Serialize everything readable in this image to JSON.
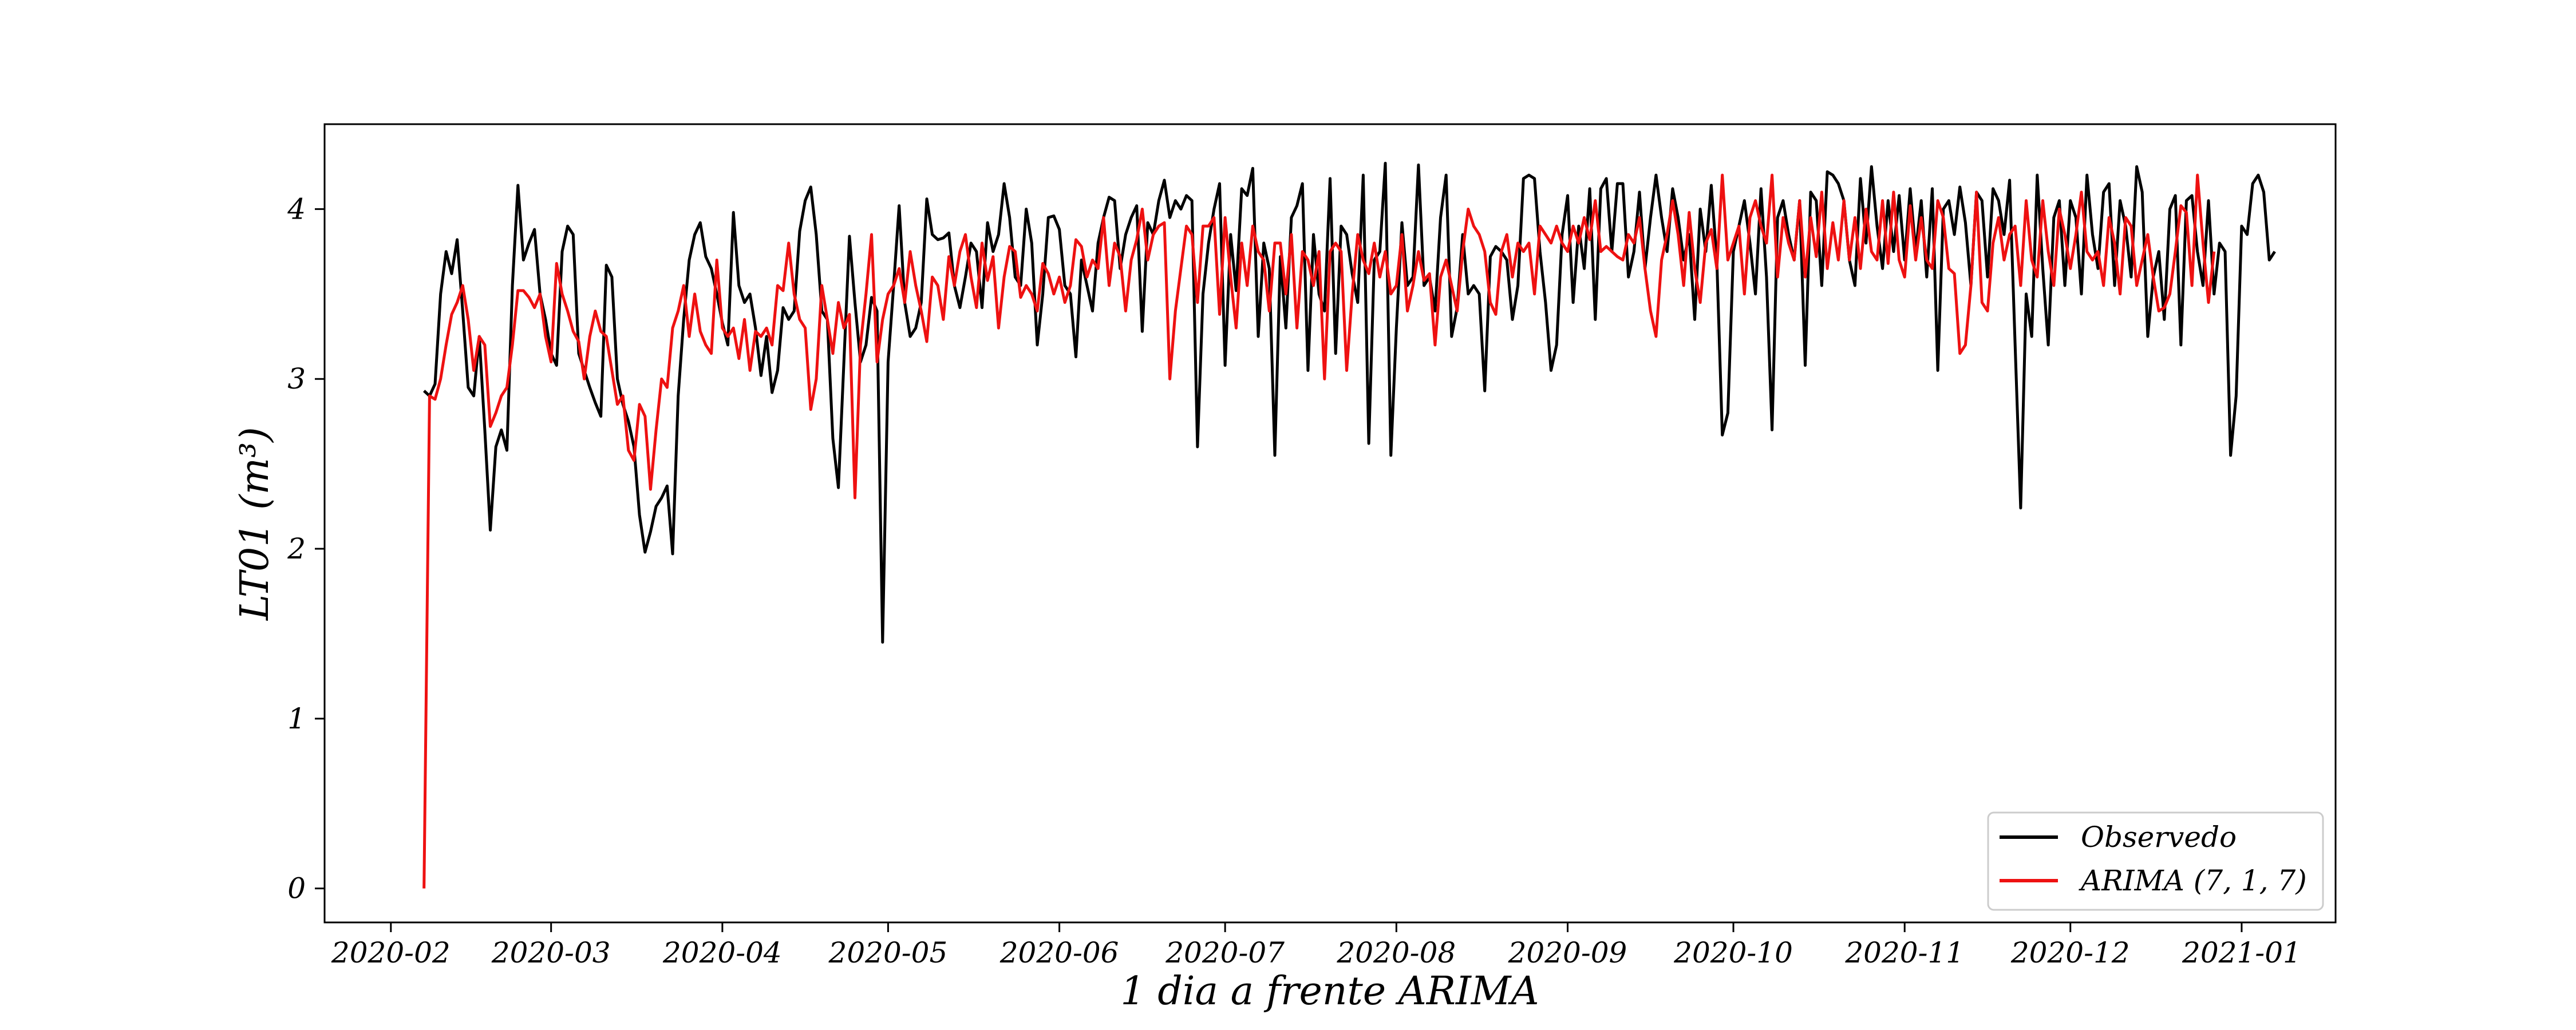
{
  "chart_data": {
    "type": "line",
    "xlabel": "1 dia a frente ARIMA",
    "ylabel": "LT01 (m³)",
    "xlim": [
      "2020-01-20",
      "2021-01-18"
    ],
    "ylim": [
      -0.2,
      4.5
    ],
    "x_ticks": [
      "2020-02",
      "2020-03",
      "2020-04",
      "2020-05",
      "2020-06",
      "2020-07",
      "2020-08",
      "2020-09",
      "2020-10",
      "2020-11",
      "2020-12",
      "2021-01"
    ],
    "y_ticks": [
      0,
      1,
      2,
      3,
      4
    ],
    "grid": false,
    "legend_position": "lower-right",
    "x_start": "2020-02-07",
    "x_step": "1 day",
    "series": [
      {
        "name": "Observedo",
        "color": "#000000",
        "values": [
          2.93,
          2.9,
          2.97,
          3.5,
          3.75,
          3.62,
          3.82,
          3.4,
          2.95,
          2.9,
          3.25,
          2.7,
          2.11,
          2.6,
          2.7,
          2.58,
          3.55,
          4.14,
          3.7,
          3.8,
          3.88,
          3.5,
          3.35,
          3.15,
          3.08,
          3.75,
          3.9,
          3.85,
          3.15,
          3.05,
          2.95,
          2.86,
          2.78,
          3.67,
          3.6,
          3.0,
          2.85,
          2.75,
          2.6,
          2.2,
          1.98,
          2.1,
          2.25,
          2.3,
          2.37,
          1.97,
          2.9,
          3.35,
          3.7,
          3.85,
          3.92,
          3.72,
          3.65,
          3.5,
          3.33,
          3.2,
          3.98,
          3.55,
          3.45,
          3.5,
          3.3,
          3.02,
          3.25,
          2.92,
          3.05,
          3.42,
          3.35,
          3.4,
          3.87,
          4.05,
          4.13,
          3.85,
          3.4,
          3.35,
          2.65,
          2.36,
          3.1,
          3.84,
          3.45,
          3.1,
          3.2,
          3.48,
          3.4,
          1.45,
          3.1,
          3.55,
          4.02,
          3.45,
          3.25,
          3.3,
          3.45,
          4.06,
          3.85,
          3.82,
          3.83,
          3.86,
          3.55,
          3.42,
          3.6,
          3.8,
          3.75,
          3.42,
          3.92,
          3.75,
          3.85,
          4.15,
          3.95,
          3.6,
          3.55,
          4.0,
          3.8,
          3.2,
          3.5,
          3.95,
          3.96,
          3.88,
          3.55,
          3.5,
          3.13,
          3.7,
          3.55,
          3.4,
          3.8,
          3.95,
          4.07,
          4.05,
          3.65,
          3.85,
          3.95,
          4.02,
          3.28,
          3.92,
          3.85,
          4.05,
          4.17,
          3.95,
          4.05,
          4.0,
          4.08,
          4.05,
          2.6,
          3.5,
          3.8,
          4.0,
          4.15,
          3.08,
          3.85,
          3.52,
          4.12,
          4.08,
          4.24,
          3.25,
          3.8,
          3.65,
          2.55,
          3.72,
          3.3,
          3.95,
          4.02,
          4.15,
          3.05,
          3.85,
          3.5,
          3.4,
          4.18,
          3.15,
          3.9,
          3.85,
          3.62,
          3.45,
          4.2,
          2.62,
          3.7,
          3.75,
          4.27,
          2.55,
          3.3,
          3.92,
          3.55,
          3.6,
          4.26,
          3.55,
          3.6,
          3.4,
          3.95,
          4.2,
          3.25,
          3.42,
          3.85,
          3.5,
          3.55,
          3.5,
          2.93,
          3.72,
          3.78,
          3.75,
          3.7,
          3.35,
          3.55,
          4.18,
          4.2,
          4.18,
          3.75,
          3.45,
          3.05,
          3.2,
          3.85,
          4.08,
          3.45,
          3.9,
          3.65,
          4.12,
          3.35,
          4.12,
          4.18,
          3.75,
          4.15,
          4.15,
          3.6,
          3.75,
          4.1,
          3.65,
          3.95,
          4.2,
          3.95,
          3.75,
          4.12,
          3.95,
          3.7,
          3.85,
          3.35,
          4.0,
          3.75,
          4.14,
          3.7,
          2.67,
          2.8,
          3.75,
          3.9,
          4.05,
          3.8,
          3.5,
          4.12,
          3.6,
          2.7,
          3.95,
          4.05,
          3.85,
          3.7,
          4.05,
          3.08,
          4.1,
          4.05,
          3.55,
          4.22,
          4.2,
          4.15,
          4.05,
          3.7,
          3.55,
          4.18,
          3.8,
          4.25,
          3.9,
          3.65,
          4.05,
          3.75,
          4.08,
          3.7,
          4.12,
          3.75,
          4.05,
          3.6,
          4.12,
          3.05,
          4.0,
          4.05,
          3.85,
          4.13,
          3.92,
          3.55,
          4.1,
          4.05,
          3.6,
          4.12,
          4.05,
          3.85,
          4.17,
          3.2,
          2.24,
          3.5,
          3.25,
          4.2,
          3.65,
          3.2,
          3.95,
          4.05,
          3.55,
          4.05,
          3.95,
          3.5,
          4.2,
          3.85,
          3.65,
          4.1,
          4.15,
          3.55,
          4.05,
          3.9,
          3.6,
          4.25,
          4.1,
          3.25,
          3.6,
          3.75,
          3.35,
          4.0,
          4.08,
          3.2,
          4.05,
          4.08,
          3.75,
          3.55,
          4.05,
          3.5,
          3.8,
          3.75,
          2.55,
          2.9,
          3.9,
          3.85,
          4.15,
          4.2,
          4.1,
          3.7,
          3.75
        ]
      },
      {
        "name": "ARIMA (7, 1, 7)",
        "color": "#ee1111",
        "values": [
          0.0,
          2.9,
          2.88,
          3.0,
          3.2,
          3.38,
          3.45,
          3.55,
          3.35,
          3.05,
          3.25,
          3.2,
          2.72,
          2.8,
          2.9,
          2.95,
          3.2,
          3.52,
          3.52,
          3.48,
          3.42,
          3.5,
          3.25,
          3.1,
          3.68,
          3.5,
          3.4,
          3.28,
          3.22,
          3.0,
          3.25,
          3.4,
          3.28,
          3.25,
          3.05,
          2.85,
          2.9,
          2.58,
          2.52,
          2.85,
          2.78,
          2.35,
          2.7,
          3.0,
          2.95,
          3.3,
          3.4,
          3.55,
          3.25,
          3.5,
          3.28,
          3.2,
          3.15,
          3.7,
          3.3,
          3.25,
          3.3,
          3.12,
          3.35,
          3.05,
          3.28,
          3.25,
          3.3,
          3.2,
          3.55,
          3.52,
          3.8,
          3.5,
          3.35,
          3.3,
          2.82,
          3.0,
          3.55,
          3.35,
          3.15,
          3.45,
          3.3,
          3.38,
          2.3,
          3.2,
          3.5,
          3.85,
          3.1,
          3.35,
          3.5,
          3.55,
          3.65,
          3.45,
          3.75,
          3.55,
          3.4,
          3.22,
          3.6,
          3.55,
          3.35,
          3.72,
          3.55,
          3.75,
          3.85,
          3.6,
          3.42,
          3.8,
          3.58,
          3.72,
          3.3,
          3.6,
          3.78,
          3.75,
          3.48,
          3.55,
          3.5,
          3.4,
          3.68,
          3.62,
          3.5,
          3.6,
          3.45,
          3.55,
          3.82,
          3.78,
          3.6,
          3.7,
          3.65,
          3.95,
          3.55,
          3.8,
          3.72,
          3.4,
          3.7,
          3.82,
          4.0,
          3.7,
          3.85,
          3.9,
          3.92,
          3.0,
          3.4,
          3.65,
          3.9,
          3.85,
          3.45,
          3.9,
          3.9,
          3.95,
          3.38,
          3.95,
          3.6,
          3.3,
          3.8,
          3.55,
          3.9,
          3.75,
          3.7,
          3.4,
          3.8,
          3.8,
          3.5,
          3.85,
          3.3,
          3.75,
          3.7,
          3.55,
          3.75,
          3.0,
          3.75,
          3.8,
          3.75,
          3.05,
          3.5,
          3.85,
          3.7,
          3.62,
          3.8,
          3.6,
          3.75,
          3.5,
          3.55,
          3.85,
          3.4,
          3.55,
          3.75,
          3.58,
          3.62,
          3.2,
          3.6,
          3.7,
          3.55,
          3.4,
          3.75,
          4.0,
          3.9,
          3.85,
          3.75,
          3.45,
          3.38,
          3.75,
          3.85,
          3.6,
          3.8,
          3.75,
          3.8,
          3.5,
          3.9,
          3.85,
          3.8,
          3.9,
          3.8,
          3.75,
          3.9,
          3.8,
          3.95,
          3.82,
          4.05,
          3.75,
          3.78,
          3.75,
          3.72,
          3.7,
          3.85,
          3.8,
          3.95,
          3.65,
          3.4,
          3.25,
          3.7,
          3.85,
          4.05,
          3.85,
          3.55,
          3.98,
          3.65,
          3.45,
          3.8,
          3.88,
          3.65,
          4.2,
          3.7,
          3.8,
          3.9,
          3.5,
          3.95,
          4.05,
          3.9,
          3.8,
          4.2,
          3.6,
          3.95,
          3.8,
          3.7,
          4.05,
          3.6,
          3.95,
          3.72,
          4.1,
          3.65,
          3.92,
          3.7,
          4.05,
          3.7,
          3.95,
          3.65,
          4.0,
          3.75,
          3.7,
          4.05,
          3.68,
          4.1,
          3.7,
          3.6,
          4.02,
          3.7,
          3.95,
          3.7,
          3.65,
          4.05,
          3.95,
          3.65,
          3.62,
          3.15,
          3.2,
          3.55,
          4.1,
          3.45,
          3.4,
          3.8,
          3.95,
          3.7,
          3.85,
          3.9,
          3.55,
          4.05,
          3.7,
          3.6,
          4.05,
          3.75,
          3.55,
          4.0,
          3.85,
          3.65,
          3.85,
          4.1,
          3.75,
          3.7,
          3.75,
          3.55,
          3.95,
          3.8,
          3.5,
          3.95,
          3.9,
          3.55,
          3.7,
          3.85,
          3.6,
          3.4,
          3.42,
          3.5,
          3.75,
          4.02,
          3.98,
          3.55,
          4.2,
          3.8,
          3.45,
          3.75
        ]
      }
    ]
  }
}
